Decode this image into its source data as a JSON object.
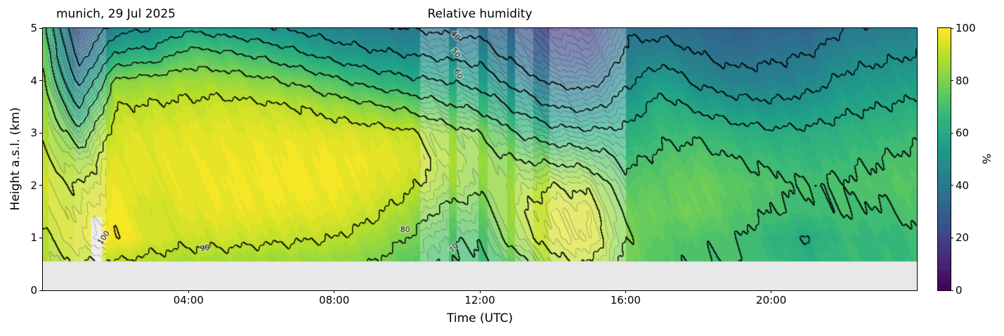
{
  "header": {
    "title": "Relative humidity",
    "corner_label": "munich, 29 Jul 2025"
  },
  "axes": {
    "x": {
      "label": "Time (UTC)",
      "range_hours": [
        0,
        24
      ],
      "ticks": [
        {
          "value": 4,
          "label": "04:00"
        },
        {
          "value": 8,
          "label": "08:00"
        },
        {
          "value": 12,
          "label": "12:00"
        },
        {
          "value": 16,
          "label": "16:00"
        },
        {
          "value": 20,
          "label": "20:00"
        }
      ]
    },
    "y": {
      "label": "Height a.s.l. (km)",
      "range_km": [
        0,
        5
      ],
      "ticks": [
        {
          "value": 0,
          "label": "0"
        },
        {
          "value": 1,
          "label": "1"
        },
        {
          "value": 2,
          "label": "2"
        },
        {
          "value": 3,
          "label": "3"
        },
        {
          "value": 4,
          "label": "4"
        },
        {
          "value": 5,
          "label": "5"
        }
      ]
    }
  },
  "colorbar": {
    "unit_label": "%",
    "range": [
      0,
      100
    ],
    "band_step": 2.5,
    "ticks": [
      {
        "value": 0,
        "label": "0"
      },
      {
        "value": 20,
        "label": "20"
      },
      {
        "value": 40,
        "label": "40"
      },
      {
        "value": 60,
        "label": "60"
      },
      {
        "value": 80,
        "label": "80"
      },
      {
        "value": 100,
        "label": "100"
      }
    ],
    "colormap_name": "viridis",
    "colormap_stops": [
      "#440154",
      "#482878",
      "#3e4a89",
      "#31688e",
      "#26828e",
      "#1f9e89",
      "#35b779",
      "#6ece58",
      "#b5de2b",
      "#fde725"
    ]
  },
  "chart_data": {
    "type": "heatmap",
    "value_name": "relative_humidity_percent",
    "title": "Relative humidity",
    "xlabel": "Time (UTC)",
    "ylabel": "Height a.s.l. (km)",
    "x_hours": [
      0,
      1,
      2,
      3,
      4,
      5,
      6,
      7,
      8,
      9,
      10,
      11,
      12,
      13,
      14,
      15,
      16,
      17,
      18,
      19,
      20,
      21,
      22,
      23,
      24
    ],
    "heights_km": [
      0.5,
      1.0,
      1.5,
      2.0,
      2.5,
      3.0,
      3.5,
      4.0,
      4.5,
      5.0
    ],
    "rh_by_time": [
      [
        86,
        89,
        93,
        93,
        91,
        89,
        87,
        81,
        78,
        75
      ],
      [
        90,
        95,
        93,
        90,
        84,
        74,
        60,
        46,
        34,
        24
      ],
      [
        88,
        100.4,
        99.5,
        97,
        96,
        94,
        90,
        82,
        62,
        46
      ],
      [
        87,
        94,
        92,
        95,
        96,
        95,
        91,
        84,
        64,
        50
      ],
      [
        86,
        92,
        96,
        97,
        97,
        96,
        92,
        86,
        74,
        58
      ],
      [
        85,
        93,
        97,
        98,
        97,
        96,
        93,
        85,
        72,
        55
      ],
      [
        84,
        92,
        97,
        98,
        98,
        96,
        92,
        82,
        68,
        52
      ],
      [
        84,
        91,
        96,
        99,
        98,
        96,
        90,
        78,
        62,
        48
      ],
      [
        83,
        90,
        96,
        98,
        98,
        95,
        86,
        72,
        56,
        44
      ],
      [
        80,
        86,
        92,
        96,
        97,
        94,
        82,
        66,
        52,
        42
      ],
      [
        74,
        80,
        86,
        92,
        95,
        92,
        78,
        62,
        50,
        40
      ],
      [
        70,
        72,
        78,
        85,
        88,
        85,
        72,
        60,
        48,
        38
      ],
      [
        68,
        70,
        76,
        82,
        84,
        80,
        68,
        56,
        46,
        36
      ],
      [
        75,
        85,
        88,
        86,
        80,
        70,
        58,
        46,
        36,
        28
      ],
      [
        88,
        94,
        95,
        90,
        78,
        64,
        50,
        38,
        26,
        18
      ],
      [
        90,
        96,
        94,
        88,
        76,
        62,
        48,
        36,
        24,
        16
      ],
      [
        78,
        80,
        78,
        74,
        68,
        62,
        55,
        48,
        42,
        38
      ],
      [
        72,
        74,
        76,
        75,
        72,
        68,
        64,
        56,
        46,
        36
      ],
      [
        70,
        72,
        78,
        78,
        74,
        68,
        58,
        48,
        40,
        34
      ],
      [
        70,
        71,
        73,
        74,
        70,
        64,
        54,
        44,
        36,
        30
      ],
      [
        68,
        65,
        70,
        72,
        68,
        62,
        52,
        44,
        38,
        34
      ],
      [
        64,
        60,
        68,
        70,
        66,
        62,
        54,
        46,
        40,
        32
      ],
      [
        68,
        67,
        70,
        71,
        68,
        64,
        58,
        52,
        46,
        40
      ],
      [
        67,
        66,
        69,
        72,
        70,
        66,
        60,
        54,
        48,
        42
      ],
      [
        68,
        68,
        72,
        74,
        72,
        68,
        62,
        56,
        50,
        44
      ]
    ],
    "contour_levels_black": [
      40,
      50,
      60,
      70,
      80,
      90,
      100
    ],
    "contour_labels": [
      {
        "text": "100",
        "t": 1.68,
        "h": 1.0,
        "rot": -55
      },
      {
        "text": "90",
        "t": 4.45,
        "h": 0.8,
        "rot": -8
      },
      {
        "text": "80",
        "t": 9.95,
        "h": 1.15,
        "rot": 0
      },
      {
        "text": "70",
        "t": 11.3,
        "h": 0.8,
        "rot": -48
      },
      {
        "text": "60",
        "t": 11.4,
        "h": 4.12,
        "rot": 62
      },
      {
        "text": "50",
        "t": 11.33,
        "h": 4.52,
        "rot": 55
      },
      {
        "text": "40",
        "t": 11.32,
        "h": 4.85,
        "rot": 48
      }
    ],
    "washed_bands": [
      {
        "t0": 0.15,
        "t1": 0.85,
        "alpha": 0.18
      },
      {
        "t0": 0.85,
        "t1": 1.72,
        "alpha": 0.26
      },
      {
        "t0": 10.35,
        "t1": 11.15,
        "alpha": 0.28
      },
      {
        "t0": 11.35,
        "t1": 11.95,
        "alpha": 0.28
      },
      {
        "t0": 12.2,
        "t1": 12.75,
        "alpha": 0.22
      },
      {
        "t0": 12.95,
        "t1": 13.45,
        "alpha": 0.3
      },
      {
        "t0": 13.45,
        "t1": 13.9,
        "alpha": 0.12
      },
      {
        "t0": 13.9,
        "t1": 16.0,
        "alpha": 0.34
      }
    ],
    "missing_patch": {
      "t0": 1.33,
      "t1": 1.62,
      "h0": 0.55,
      "h1": 1.4,
      "color": "#ededed"
    },
    "data_floor_km": 0.55,
    "below_floor_color": "#e8e8e8",
    "contour_line_color": "#000000"
  }
}
